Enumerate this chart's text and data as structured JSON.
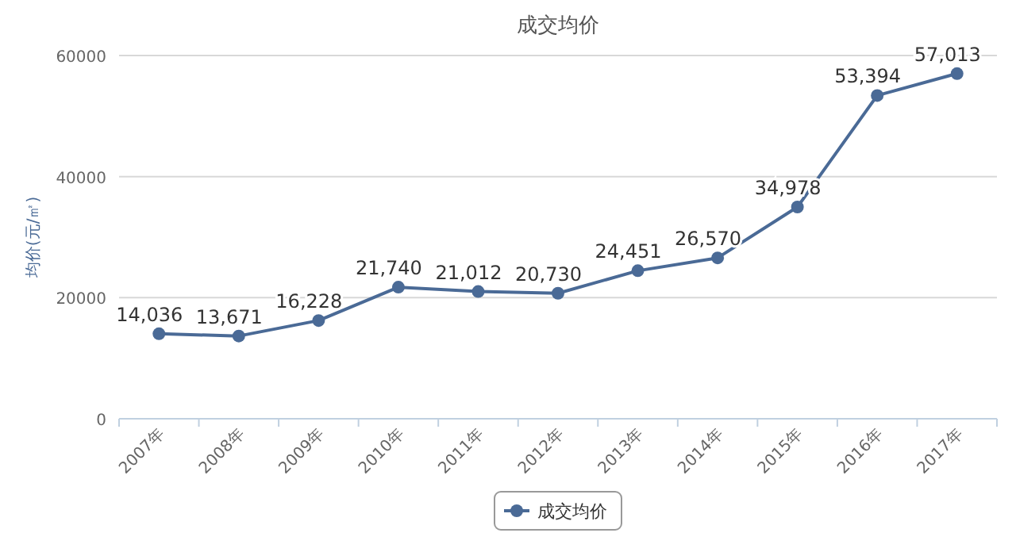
{
  "chart_data": {
    "type": "line",
    "title": "成交均价",
    "ylabel": "均价(元/㎡)",
    "categories": [
      "2007年",
      "2008年",
      "2009年",
      "2010年",
      "2011年",
      "2012年",
      "2013年",
      "2014年",
      "2015年",
      "2016年",
      "2017年"
    ],
    "series": [
      {
        "name": "成交均价",
        "color": "#4a6a96",
        "values": [
          14036,
          13671,
          16228,
          21740,
          21012,
          20730,
          24451,
          26570,
          34978,
          53394,
          57013
        ],
        "value_labels": [
          "14,036",
          "13,671",
          "16,228",
          "21,740",
          "21,012",
          "20,730",
          "24,451",
          "26,570",
          "34,978",
          "53,394",
          "57,013"
        ]
      }
    ],
    "ylim": [
      0,
      60000
    ],
    "yticks": [
      0,
      20000,
      40000,
      60000
    ],
    "grid": "y",
    "legend": "bottom",
    "marker": "circle"
  }
}
